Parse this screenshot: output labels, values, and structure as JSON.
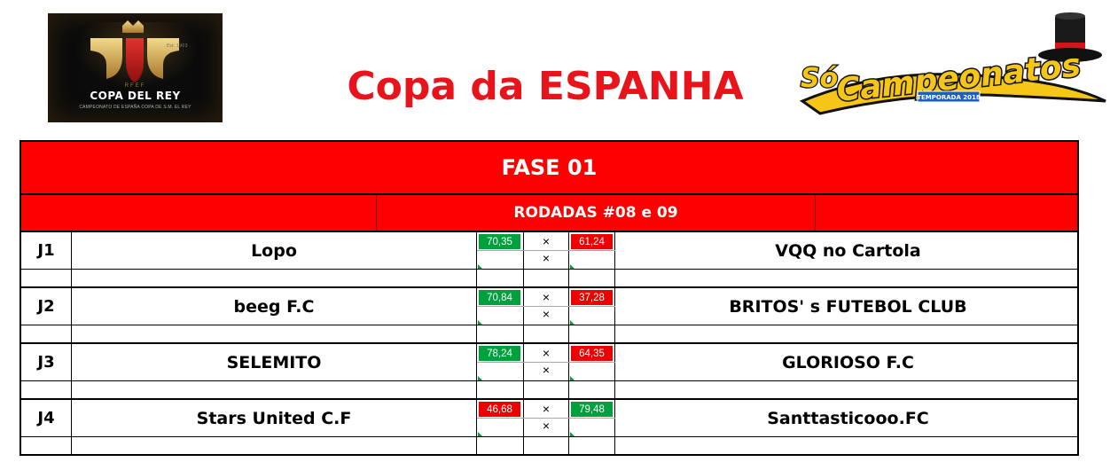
{
  "header": {
    "title": "Copa da ESPANHA",
    "left_logo": {
      "top_text": "RFEF",
      "name": "COPA DEL REY",
      "subtitle": "CAMPEONATO DE ESPAÑA COPA DE S.M. EL REY"
    },
    "right_logo": {
      "name": "Só Campeonatos",
      "badge": "TEMPORADA 2018"
    }
  },
  "colors": {
    "title": "#e8141b",
    "banner": "#ff0000",
    "win": "#00a03c",
    "loss": "#ee0000"
  },
  "bracket": {
    "phase": "FASE 01",
    "round": "RODADAS  #08 e 09",
    "separator": "×",
    "matches": [
      {
        "code": "J1",
        "home": "Lopo",
        "home_score": "70,35",
        "home_status": "green",
        "away": "VQQ no Cartola",
        "away_score": "61,24",
        "away_status": "red"
      },
      {
        "code": "J2",
        "home": "beeg F.C",
        "home_score": "70,84",
        "home_status": "green",
        "away": "BRITOS' s FUTEBOL CLUB",
        "away_score": "37,28",
        "away_status": "red"
      },
      {
        "code": "J3",
        "home": "SELEMITO",
        "home_score": "78,24",
        "home_status": "green",
        "away": "GLORIOSO F.C",
        "away_score": "64,35",
        "away_status": "red"
      },
      {
        "code": "J4",
        "home": "Stars United C.F",
        "home_score": "46,68",
        "home_status": "red",
        "away": "Santtasticooo.FC",
        "away_score": "79,48",
        "away_status": "green"
      }
    ]
  }
}
